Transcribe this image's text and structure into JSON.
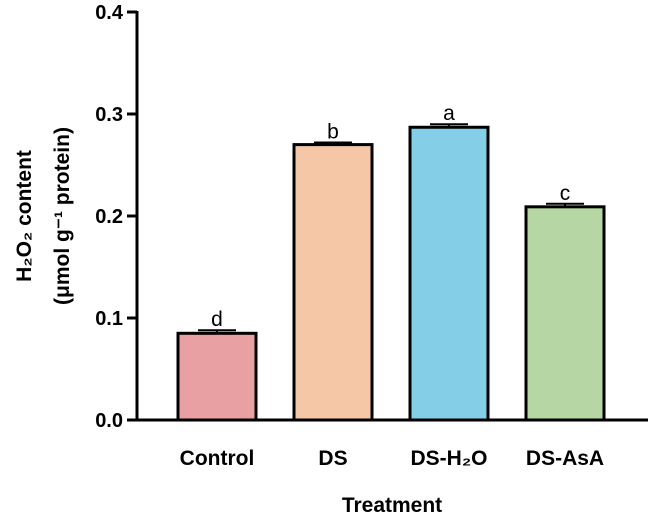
{
  "chart_data": {
    "type": "bar",
    "title": "",
    "categories": [
      "Control",
      "DS",
      "DS-H₂O",
      "DS-AsA"
    ],
    "values": [
      0.085,
      0.27,
      0.287,
      0.209
    ],
    "errors": [
      0.003,
      0.002,
      0.003,
      0.003
    ],
    "significance_letters": [
      "d",
      "b",
      "a",
      "c"
    ],
    "bar_colors": [
      "#E8A0A3",
      "#F5C7A6",
      "#85CEE8",
      "#B6D7A3"
    ],
    "xlabel": "Treatment",
    "ylabel_line1": "H₂O₂ content",
    "ylabel_line2": "(μmol g⁻¹ protein)",
    "ylim": [
      0,
      0.4
    ],
    "yticks": [
      0.0,
      0.1,
      0.2,
      0.3,
      0.4
    ],
    "ytick_labels": [
      "0.0",
      "0.1",
      "0.2",
      "0.3",
      "0.4"
    ],
    "grid": false,
    "legend": "none"
  }
}
